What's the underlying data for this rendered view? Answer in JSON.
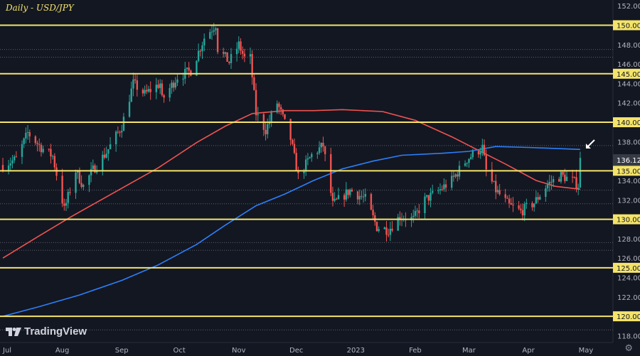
{
  "chart_data": {
    "type": "candlestick",
    "title": "Daily - USD/JPY",
    "y_axis": {
      "ticks": [
        118,
        120,
        122,
        124,
        126,
        128,
        130,
        132,
        134,
        136,
        138,
        140,
        142,
        144,
        146,
        148,
        150,
        152
      ],
      "ylim": [
        117.3,
        152.6
      ],
      "decimals": 3
    },
    "x_axis": {
      "labels": [
        "Jul",
        "Aug",
        "Sep",
        "Oct",
        "Nov",
        "Dec",
        "2023",
        "Feb",
        "Mar",
        "Apr",
        "May"
      ],
      "start": "2022-07-01",
      "end": "2023-05-01"
    },
    "horizontal_levels": [
      {
        "label": "150.000",
        "value": 150.0
      },
      {
        "label": "145.000",
        "value": 145.0
      },
      {
        "label": "140.000",
        "value": 140.0
      },
      {
        "label": "135.000",
        "value": 135.0
      },
      {
        "label": "130.000",
        "value": 130.0
      },
      {
        "label": "125.000",
        "value": 125.0
      },
      {
        "label": "120.000",
        "value": 120.0
      }
    ],
    "dotted_levels": [
      147.5,
      146.7,
      137.6,
      133.0,
      131.6,
      127.6,
      126.8,
      118.6
    ],
    "last_price": {
      "label": "136.121",
      "value": 136.121
    },
    "moving_averages": [
      {
        "color": "#ef5350",
        "points": [
          [
            "2022-07-01",
            126.0
          ],
          [
            "2022-07-20",
            128.3
          ],
          [
            "2022-08-05",
            130.2
          ],
          [
            "2022-09-01",
            133.2
          ],
          [
            "2022-09-20",
            135.3
          ],
          [
            "2022-10-10",
            137.9
          ],
          [
            "2022-10-25",
            139.6
          ],
          [
            "2022-11-08",
            140.9
          ],
          [
            "2022-11-25",
            141.2
          ],
          [
            "2022-12-10",
            141.2
          ],
          [
            "2022-12-25",
            141.3
          ],
          [
            "2023-01-15",
            141.1
          ],
          [
            "2023-02-01",
            140.2
          ],
          [
            "2023-02-20",
            138.5
          ],
          [
            "2023-03-05",
            137.2
          ],
          [
            "2023-03-20",
            135.7
          ],
          [
            "2023-04-05",
            134.0
          ],
          [
            "2023-04-15",
            133.4
          ],
          [
            "2023-04-28",
            133.1
          ]
        ]
      },
      {
        "color": "#2d7ff9",
        "points": [
          [
            "2022-07-01",
            120.0
          ],
          [
            "2022-07-20",
            121.0
          ],
          [
            "2022-08-10",
            122.2
          ],
          [
            "2022-09-01",
            123.7
          ],
          [
            "2022-09-20",
            125.3
          ],
          [
            "2022-10-10",
            127.4
          ],
          [
            "2022-10-25",
            129.4
          ],
          [
            "2022-11-10",
            131.4
          ],
          [
            "2022-11-25",
            132.6
          ],
          [
            "2022-12-10",
            134.0
          ],
          [
            "2022-12-25",
            135.2
          ],
          [
            "2023-01-10",
            136.0
          ],
          [
            "2023-01-25",
            136.6
          ],
          [
            "2023-02-15",
            136.8
          ],
          [
            "2023-03-01",
            137.0
          ],
          [
            "2023-03-15",
            137.5
          ],
          [
            "2023-04-01",
            137.4
          ],
          [
            "2023-04-28",
            137.2
          ]
        ]
      }
    ],
    "price_path": [
      [
        "2022-07-01",
        135.6
      ],
      [
        "2022-07-08",
        136.2
      ],
      [
        "2022-07-14",
        138.9
      ],
      [
        "2022-07-21",
        137.4
      ],
      [
        "2022-07-27",
        136.5
      ],
      [
        "2022-08-02",
        131.0
      ],
      [
        "2022-08-08",
        135.0
      ],
      [
        "2022-08-12",
        133.4
      ],
      [
        "2022-08-17",
        135.1
      ],
      [
        "2022-08-24",
        136.9
      ],
      [
        "2022-09-01",
        139.6
      ],
      [
        "2022-09-07",
        144.0
      ],
      [
        "2022-09-13",
        142.9
      ],
      [
        "2022-09-21",
        144.0
      ],
      [
        "2022-09-22",
        142.3
      ],
      [
        "2022-09-30",
        144.7
      ],
      [
        "2022-10-07",
        145.3
      ],
      [
        "2022-10-14",
        148.7
      ],
      [
        "2022-10-20",
        150.1
      ],
      [
        "2022-10-21",
        147.6
      ],
      [
        "2022-10-27",
        146.2
      ],
      [
        "2022-11-01",
        148.0
      ],
      [
        "2022-11-04",
        146.6
      ],
      [
        "2022-11-07",
        146.6
      ],
      [
        "2022-11-10",
        140.9
      ],
      [
        "2022-11-15",
        139.2
      ],
      [
        "2022-11-21",
        142.0
      ],
      [
        "2022-11-28",
        138.3
      ],
      [
        "2022-12-02",
        134.4
      ],
      [
        "2022-12-09",
        136.6
      ],
      [
        "2022-12-15",
        137.6
      ],
      [
        "2022-12-20",
        131.5
      ],
      [
        "2022-12-29",
        133.0
      ],
      [
        "2023-01-06",
        132.1
      ],
      [
        "2023-01-12",
        129.2
      ],
      [
        "2023-01-18",
        128.9
      ],
      [
        "2023-01-24",
        130.3
      ],
      [
        "2023-01-31",
        130.0
      ],
      [
        "2023-02-06",
        132.0
      ],
      [
        "2023-02-13",
        132.9
      ],
      [
        "2023-02-20",
        134.0
      ],
      [
        "2023-02-28",
        136.2
      ],
      [
        "2023-03-08",
        137.4
      ],
      [
        "2023-03-10",
        135.0
      ],
      [
        "2023-03-15",
        133.0
      ],
      [
        "2023-03-22",
        131.4
      ],
      [
        "2023-03-28",
        130.8
      ],
      [
        "2023-04-04",
        131.7
      ],
      [
        "2023-04-11",
        133.6
      ],
      [
        "2023-04-18",
        134.5
      ],
      [
        "2023-04-24",
        134.0
      ],
      [
        "2023-04-27",
        133.5
      ],
      [
        "2023-04-28",
        136.1
      ]
    ],
    "colors": {
      "background": "#131722",
      "levels": "#f5e46a",
      "up_candle": "#26a69a",
      "down_candle": "#ef5350",
      "last_price_tag": "#363a45",
      "axis_text": "#b2b5be",
      "dotted": "#5d606b"
    }
  },
  "branding": {
    "logo_text": "TradingView"
  },
  "icons": {
    "arrow": "arrow-down-left-icon",
    "settings": "gear-icon",
    "logo": "tradingview-logo-icon"
  }
}
